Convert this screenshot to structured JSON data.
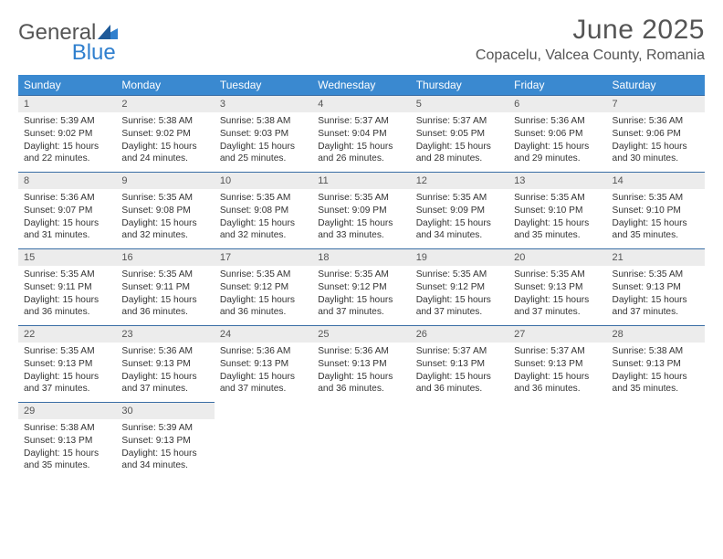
{
  "brand": {
    "g": "General",
    "b": "Blue"
  },
  "title": {
    "month": "June 2025",
    "location": "Copacelu, Valcea County, Romania"
  },
  "colors": {
    "header_bg": "#3a89d0",
    "header_text": "#ffffff",
    "daynum_bg": "#ececec",
    "rule": "#3a6ea5",
    "text": "#333333",
    "brand_blue": "#2f7fce",
    "brand_gray": "#555555",
    "page_bg": "#ffffff"
  },
  "font": {
    "family": "Arial",
    "header_size_pt": 22,
    "loc_size_pt": 12,
    "body_size_pt": 8
  },
  "days": [
    "Sunday",
    "Monday",
    "Tuesday",
    "Wednesday",
    "Thursday",
    "Friday",
    "Saturday"
  ],
  "weeks": [
    [
      {
        "n": "1",
        "sr": "Sunrise: 5:39 AM",
        "ss": "Sunset: 9:02 PM",
        "d1": "Daylight: 15 hours",
        "d2": "and 22 minutes."
      },
      {
        "n": "2",
        "sr": "Sunrise: 5:38 AM",
        "ss": "Sunset: 9:02 PM",
        "d1": "Daylight: 15 hours",
        "d2": "and 24 minutes."
      },
      {
        "n": "3",
        "sr": "Sunrise: 5:38 AM",
        "ss": "Sunset: 9:03 PM",
        "d1": "Daylight: 15 hours",
        "d2": "and 25 minutes."
      },
      {
        "n": "4",
        "sr": "Sunrise: 5:37 AM",
        "ss": "Sunset: 9:04 PM",
        "d1": "Daylight: 15 hours",
        "d2": "and 26 minutes."
      },
      {
        "n": "5",
        "sr": "Sunrise: 5:37 AM",
        "ss": "Sunset: 9:05 PM",
        "d1": "Daylight: 15 hours",
        "d2": "and 28 minutes."
      },
      {
        "n": "6",
        "sr": "Sunrise: 5:36 AM",
        "ss": "Sunset: 9:06 PM",
        "d1": "Daylight: 15 hours",
        "d2": "and 29 minutes."
      },
      {
        "n": "7",
        "sr": "Sunrise: 5:36 AM",
        "ss": "Sunset: 9:06 PM",
        "d1": "Daylight: 15 hours",
        "d2": "and 30 minutes."
      }
    ],
    [
      {
        "n": "8",
        "sr": "Sunrise: 5:36 AM",
        "ss": "Sunset: 9:07 PM",
        "d1": "Daylight: 15 hours",
        "d2": "and 31 minutes."
      },
      {
        "n": "9",
        "sr": "Sunrise: 5:35 AM",
        "ss": "Sunset: 9:08 PM",
        "d1": "Daylight: 15 hours",
        "d2": "and 32 minutes."
      },
      {
        "n": "10",
        "sr": "Sunrise: 5:35 AM",
        "ss": "Sunset: 9:08 PM",
        "d1": "Daylight: 15 hours",
        "d2": "and 32 minutes."
      },
      {
        "n": "11",
        "sr": "Sunrise: 5:35 AM",
        "ss": "Sunset: 9:09 PM",
        "d1": "Daylight: 15 hours",
        "d2": "and 33 minutes."
      },
      {
        "n": "12",
        "sr": "Sunrise: 5:35 AM",
        "ss": "Sunset: 9:09 PM",
        "d1": "Daylight: 15 hours",
        "d2": "and 34 minutes."
      },
      {
        "n": "13",
        "sr": "Sunrise: 5:35 AM",
        "ss": "Sunset: 9:10 PM",
        "d1": "Daylight: 15 hours",
        "d2": "and 35 minutes."
      },
      {
        "n": "14",
        "sr": "Sunrise: 5:35 AM",
        "ss": "Sunset: 9:10 PM",
        "d1": "Daylight: 15 hours",
        "d2": "and 35 minutes."
      }
    ],
    [
      {
        "n": "15",
        "sr": "Sunrise: 5:35 AM",
        "ss": "Sunset: 9:11 PM",
        "d1": "Daylight: 15 hours",
        "d2": "and 36 minutes."
      },
      {
        "n": "16",
        "sr": "Sunrise: 5:35 AM",
        "ss": "Sunset: 9:11 PM",
        "d1": "Daylight: 15 hours",
        "d2": "and 36 minutes."
      },
      {
        "n": "17",
        "sr": "Sunrise: 5:35 AM",
        "ss": "Sunset: 9:12 PM",
        "d1": "Daylight: 15 hours",
        "d2": "and 36 minutes."
      },
      {
        "n": "18",
        "sr": "Sunrise: 5:35 AM",
        "ss": "Sunset: 9:12 PM",
        "d1": "Daylight: 15 hours",
        "d2": "and 37 minutes."
      },
      {
        "n": "19",
        "sr": "Sunrise: 5:35 AM",
        "ss": "Sunset: 9:12 PM",
        "d1": "Daylight: 15 hours",
        "d2": "and 37 minutes."
      },
      {
        "n": "20",
        "sr": "Sunrise: 5:35 AM",
        "ss": "Sunset: 9:13 PM",
        "d1": "Daylight: 15 hours",
        "d2": "and 37 minutes."
      },
      {
        "n": "21",
        "sr": "Sunrise: 5:35 AM",
        "ss": "Sunset: 9:13 PM",
        "d1": "Daylight: 15 hours",
        "d2": "and 37 minutes."
      }
    ],
    [
      {
        "n": "22",
        "sr": "Sunrise: 5:35 AM",
        "ss": "Sunset: 9:13 PM",
        "d1": "Daylight: 15 hours",
        "d2": "and 37 minutes."
      },
      {
        "n": "23",
        "sr": "Sunrise: 5:36 AM",
        "ss": "Sunset: 9:13 PM",
        "d1": "Daylight: 15 hours",
        "d2": "and 37 minutes."
      },
      {
        "n": "24",
        "sr": "Sunrise: 5:36 AM",
        "ss": "Sunset: 9:13 PM",
        "d1": "Daylight: 15 hours",
        "d2": "and 37 minutes."
      },
      {
        "n": "25",
        "sr": "Sunrise: 5:36 AM",
        "ss": "Sunset: 9:13 PM",
        "d1": "Daylight: 15 hours",
        "d2": "and 36 minutes."
      },
      {
        "n": "26",
        "sr": "Sunrise: 5:37 AM",
        "ss": "Sunset: 9:13 PM",
        "d1": "Daylight: 15 hours",
        "d2": "and 36 minutes."
      },
      {
        "n": "27",
        "sr": "Sunrise: 5:37 AM",
        "ss": "Sunset: 9:13 PM",
        "d1": "Daylight: 15 hours",
        "d2": "and 36 minutes."
      },
      {
        "n": "28",
        "sr": "Sunrise: 5:38 AM",
        "ss": "Sunset: 9:13 PM",
        "d1": "Daylight: 15 hours",
        "d2": "and 35 minutes."
      }
    ],
    [
      {
        "n": "29",
        "sr": "Sunrise: 5:38 AM",
        "ss": "Sunset: 9:13 PM",
        "d1": "Daylight: 15 hours",
        "d2": "and 35 minutes."
      },
      {
        "n": "30",
        "sr": "Sunrise: 5:39 AM",
        "ss": "Sunset: 9:13 PM",
        "d1": "Daylight: 15 hours",
        "d2": "and 34 minutes."
      },
      null,
      null,
      null,
      null,
      null
    ]
  ]
}
